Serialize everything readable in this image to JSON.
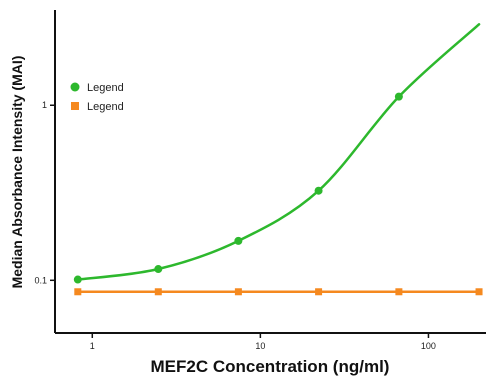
{
  "chart_data": {
    "type": "line",
    "xlabel": "MEF2C Concentration (ng/ml)",
    "ylabel": "Median Absorbance Intensity (MAI)",
    "x_scale": "log",
    "y_scale": "log",
    "xlim": [
      0.6,
      220
    ],
    "ylim": [
      0.05,
      3.5
    ],
    "x_ticks": [
      1,
      10,
      100
    ],
    "x_tick_labels": [
      "1",
      "10",
      "100"
    ],
    "y_ticks": [
      0.1,
      1
    ],
    "y_tick_labels": [
      "0.1",
      "1"
    ],
    "grid": false,
    "legend_position": "top-left",
    "series": [
      {
        "name": "Legend",
        "color": "#2db82d",
        "marker": "circle",
        "curve": "smooth-fit",
        "x": [
          0.82,
          2.47,
          7.4,
          22.2,
          66.7,
          200
        ],
        "y": [
          0.101,
          0.116,
          0.168,
          0.325,
          1.12,
          2.9
        ]
      },
      {
        "name": "Legend",
        "color": "#f5891f",
        "marker": "square",
        "curve": "flat",
        "x": [
          0.82,
          2.47,
          7.4,
          22.2,
          66.7,
          200
        ],
        "y": [
          0.086,
          0.086,
          0.086,
          0.086,
          0.086,
          0.086
        ]
      }
    ]
  }
}
